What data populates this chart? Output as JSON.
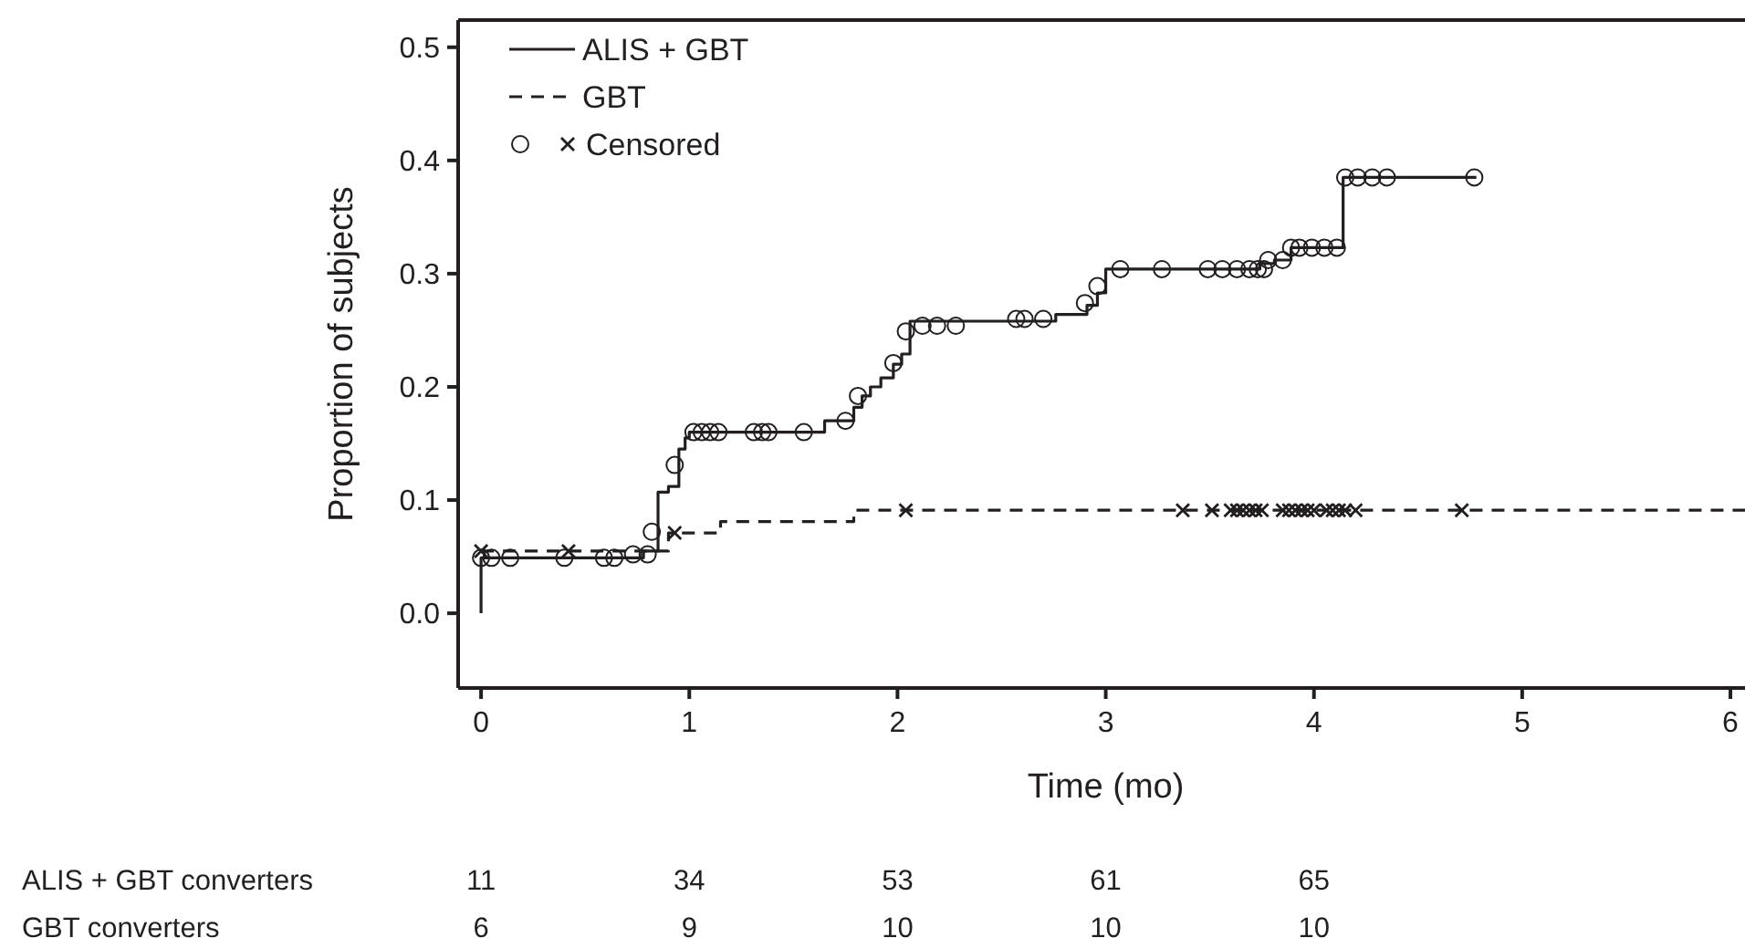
{
  "chart_data": {
    "type": "step",
    "xlabel": "Time (mo)",
    "ylabel": "Proportion of subjects",
    "xlim": [
      -0.11,
      6.07
    ],
    "ylim": [
      -0.066,
      0.524
    ],
    "xticks": [
      0,
      1,
      2,
      3,
      4,
      5,
      6
    ],
    "yticks": [
      {
        "value": 0,
        "label": "0.0"
      },
      0.1,
      0.2,
      0.3,
      0.4,
      0.5
    ],
    "legend": "top left",
    "grid": false,
    "series": [
      {
        "name": "ALIS + GBT",
        "color": "#231f20",
        "line_style": "solid",
        "marker": "none",
        "x": [
          0,
          0,
          0.78,
          0.85,
          0.9,
          0.95,
          0.98,
          1.0,
          1.65,
          1.79,
          1.83,
          1.87,
          1.92,
          1.98,
          2.02,
          2.06,
          2.76,
          2.91,
          2.96,
          3.0,
          3.74,
          3.81,
          3.89,
          4.14,
          4.78
        ],
        "values": [
          0,
          0.049,
          0.055,
          0.107,
          0.112,
          0.145,
          0.155,
          0.16,
          0.17,
          0.182,
          0.192,
          0.2,
          0.208,
          0.22,
          0.229,
          0.258,
          0.264,
          0.272,
          0.283,
          0.304,
          0.309,
          0.312,
          0.323,
          0.385,
          0.385
        ]
      },
      {
        "name": "GBT",
        "color": "#231f20",
        "line_style": "dashed",
        "marker": "none",
        "x": [
          0,
          0.9,
          1.15,
          1.79,
          6.07
        ],
        "values": [
          0.055,
          0.071,
          0.081,
          0.091,
          0.091
        ]
      },
      {
        "type": "scatter",
        "color": "#231f20",
        "marker": "circle",
        "x": [
          0,
          0.05,
          0.14,
          0.4,
          0.59,
          0.64,
          0.73,
          0.8,
          0.82,
          0.93,
          1.02,
          1.06,
          1.1,
          1.14,
          1.31,
          1.35,
          1.38,
          1.55,
          1.75,
          1.81,
          1.98,
          2.04,
          2.12,
          2.19,
          2.28,
          2.57,
          2.61,
          2.7,
          2.9,
          2.96,
          3.07,
          3.27,
          3.49,
          3.56,
          3.63,
          3.69,
          3.73,
          3.76,
          3.78,
          3.85,
          3.89,
          3.93,
          3.99,
          4.05,
          4.11,
          4.15,
          4.21,
          4.28,
          4.35,
          4.77
        ],
        "values": [
          0.049,
          0.049,
          0.049,
          0.049,
          0.049,
          0.049,
          0.052,
          0.052,
          0.072,
          0.131,
          0.16,
          0.16,
          0.16,
          0.16,
          0.16,
          0.16,
          0.16,
          0.16,
          0.17,
          0.192,
          0.221,
          0.249,
          0.254,
          0.254,
          0.254,
          0.26,
          0.26,
          0.26,
          0.274,
          0.289,
          0.304,
          0.304,
          0.304,
          0.304,
          0.304,
          0.304,
          0.304,
          0.304,
          0.312,
          0.312,
          0.323,
          0.323,
          0.323,
          0.323,
          0.323,
          0.385,
          0.385,
          0.385,
          0.385,
          0.385
        ]
      },
      {
        "name": "Censored",
        "type": "scatter",
        "color": "#231f20",
        "marker": "cross",
        "x": [
          0,
          0.42,
          0.93,
          2.04,
          3.37,
          3.51,
          3.6,
          3.63,
          3.66,
          3.69,
          3.72,
          3.75,
          3.85,
          3.88,
          3.91,
          3.94,
          3.97,
          4.0,
          4.06,
          4.09,
          4.12,
          4.15,
          4.2,
          4.71
        ],
        "values": [
          0.055,
          0.055,
          0.071,
          0.091,
          0.091,
          0.091,
          0.091,
          0.091,
          0.091,
          0.091,
          0.091,
          0.091,
          0.091,
          0.091,
          0.091,
          0.091,
          0.091,
          0.091,
          0.091,
          0.091,
          0.091,
          0.091,
          0.091,
          0.091
        ]
      }
    ],
    "annotations": [
      "ALIS + GBT converters",
      "11",
      "34",
      "53",
      "61",
      "65",
      "GBT converters",
      "6",
      "9",
      "10",
      "10",
      "10"
    ]
  }
}
